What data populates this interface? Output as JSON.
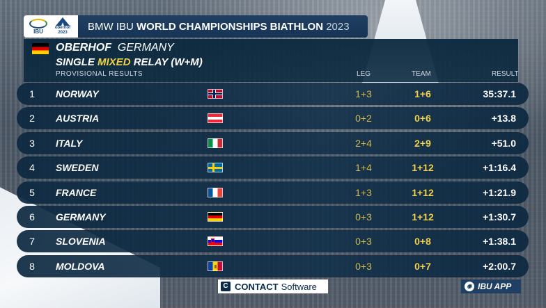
{
  "header": {
    "title_prefix": "BMW IBU ",
    "title_bold": "WORLD CHAMPIONSHIPS BIATHLON",
    "title_year": "2023",
    "logo_ibu_text": "IBU",
    "logo_oberhof_text": "oberhof",
    "logo_oberhof_year": "2023"
  },
  "event": {
    "venue_city": "OBERHOF",
    "venue_country": "GERMANY",
    "event_pre": "SINGLE ",
    "event_highlight": "MIXED",
    "event_post": " RELAY  (W+M)",
    "subtitle": "PROVISIONAL  RESULTS",
    "col_leg": "LEG",
    "col_team": "TEAM",
    "col_result": "RESULT"
  },
  "results": [
    {
      "rank": "1",
      "nation": "NORWAY",
      "flag": "norway-flag",
      "leg": "1+3",
      "team": "1+6",
      "result": "35:37.1"
    },
    {
      "rank": "2",
      "nation": "AUSTRIA",
      "flag": "austria-flag",
      "leg": "0+2",
      "team": "0+6",
      "result": "+13.8"
    },
    {
      "rank": "3",
      "nation": "ITALY",
      "flag": "italy-flag",
      "leg": "2+4",
      "team": "2+9",
      "result": "+51.0"
    },
    {
      "rank": "4",
      "nation": "SWEDEN",
      "flag": "sweden-flag",
      "leg": "1+4",
      "team": "1+12",
      "result": "+1:16.4"
    },
    {
      "rank": "5",
      "nation": "FRANCE",
      "flag": "france-flag",
      "leg": "1+3",
      "team": "1+12",
      "result": "+1:21.9"
    },
    {
      "rank": "6",
      "nation": "GERMANY",
      "flag": "germany-flag",
      "leg": "0+3",
      "team": "1+12",
      "result": "+1:30.7"
    },
    {
      "rank": "7",
      "nation": "SLOVENIA",
      "flag": "slovenia-flag",
      "leg": "0+3",
      "team": "0+8",
      "result": "+1:38.1"
    },
    {
      "rank": "8",
      "nation": "MOLDOVA",
      "flag": "moldova-flag",
      "leg": "0+3",
      "team": "0+7",
      "result": "+2:00.7"
    }
  ],
  "sponsors": {
    "contact_bold": "CONTACT",
    "contact_rest": "Software",
    "contact_icon": "C",
    "app_label": "IBU APP"
  },
  "colors": {
    "panel": "#0a283e",
    "highlight": "#f0d24a",
    "title_bar": "#1f3f63"
  }
}
